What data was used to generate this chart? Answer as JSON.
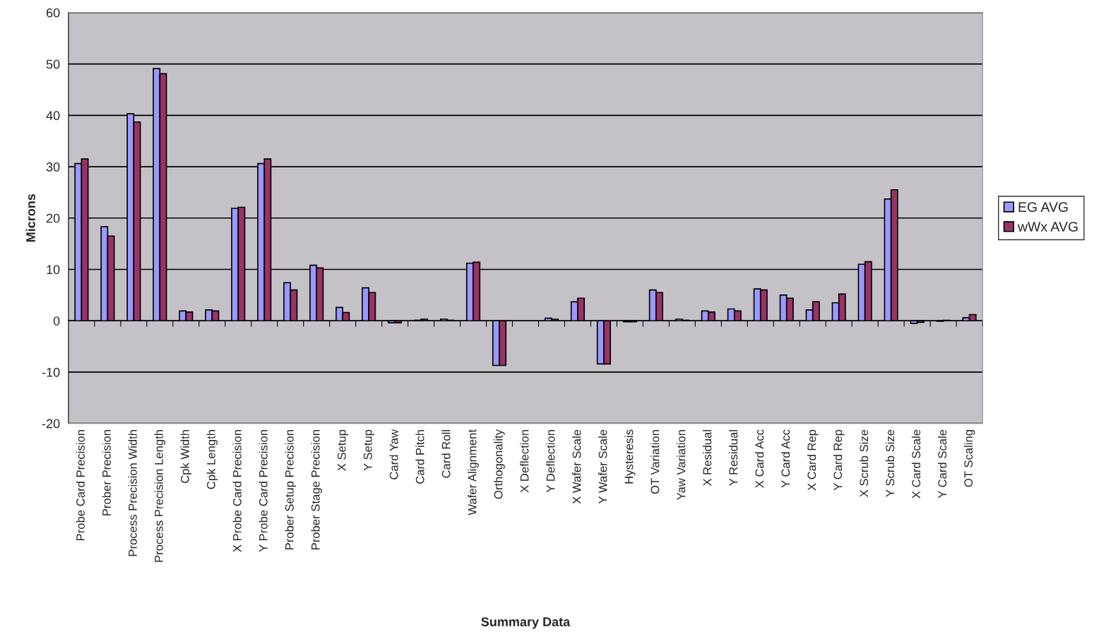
{
  "chart_data": {
    "type": "bar",
    "xlabel": "Summary Data",
    "ylabel": "Microns",
    "categories": [
      "Probe Card Precision",
      "Prober Precision",
      "Process Precision Width",
      "Process Precision Length",
      "Cpk Width",
      "Cpk Length",
      "X Probe Card Precision",
      "Y Probe Card Precision",
      "Prober Setup Precision",
      "Prober Stage Precision",
      "X Setup",
      "Y Setup",
      "Card Yaw",
      "Card Pitch",
      "Card Roll",
      "Wafer Alignment",
      "Orthogonality",
      "X Deflection",
      "Y Deflection",
      "X Wafer Scale",
      "Y Wafer Scale",
      "Hysteresis",
      "OT Variation",
      "Yaw Variation",
      "X Residual",
      "Y Residual",
      "X Card Acc",
      "Y Card Acc",
      "X Card Rep",
      "Y Card Rep",
      "X Scrub Size",
      "Y Scrub Size",
      "X Card Scale",
      "Y Card Scale",
      "OT Scaling"
    ],
    "series": [
      {
        "name": "EG AVG",
        "color": "#9999ff",
        "values": [
          30.6,
          18.3,
          40.3,
          49.1,
          1.9,
          2.1,
          21.9,
          30.6,
          7.4,
          10.8,
          2.6,
          6.4,
          -0.4,
          0.1,
          0.3,
          11.2,
          -8.7,
          null,
          0.5,
          3.7,
          -8.4,
          -0.2,
          6.0,
          0.3,
          1.9,
          2.3,
          6.2,
          5.0,
          2.1,
          3.5,
          11.0,
          23.7,
          -0.5,
          -0.1,
          0.6
        ]
      },
      {
        "name": "wWx AVG",
        "color": "#993366",
        "values": [
          31.5,
          16.5,
          38.7,
          48.1,
          1.7,
          1.9,
          22.1,
          31.5,
          6.0,
          10.3,
          1.6,
          5.5,
          -0.4,
          0.3,
          0.1,
          11.4,
          -8.7,
          null,
          0.3,
          4.4,
          -8.4,
          -0.2,
          5.5,
          0.1,
          1.7,
          1.9,
          6.0,
          4.4,
          3.7,
          5.2,
          11.5,
          25.5,
          -0.3,
          0.1,
          1.2
        ]
      }
    ],
    "ylim": [
      -20,
      60
    ],
    "yticks": [
      -20,
      -10,
      0,
      10,
      20,
      30,
      40,
      50,
      60
    ],
    "grid": "y",
    "legend": "right"
  }
}
